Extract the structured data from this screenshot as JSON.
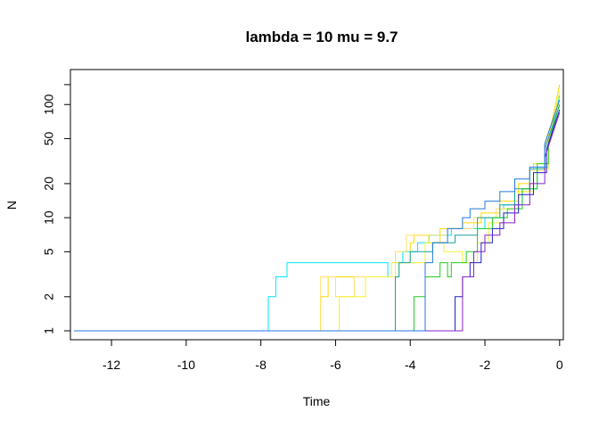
{
  "chart_data": {
    "type": "line",
    "title": "lambda = 10 mu = 9.7",
    "xlabel": "Time",
    "ylabel": "N",
    "xlim": [
      -13.1,
      0.1
    ],
    "ylim": [
      1,
      170
    ],
    "y_scale": "log",
    "x_ticks": [
      -12,
      -10,
      -8,
      -6,
      -4,
      -2,
      0
    ],
    "x_tick_labels": [
      "-12",
      "-10",
      "-8",
      "-6",
      "-4",
      "-2",
      "0"
    ],
    "y_ticks": [
      1,
      2,
      5,
      10,
      20,
      50,
      100
    ],
    "y_tick_labels": [
      "1",
      "2",
      "5",
      "10",
      "20",
      "50",
      "100"
    ],
    "grid": false,
    "series": [
      {
        "color": "#00e5ff",
        "values": [
          [
            -13.0,
            1
          ],
          [
            -7.8,
            1
          ],
          [
            -7.8,
            2
          ],
          [
            -7.6,
            2
          ],
          [
            -7.6,
            3
          ],
          [
            -7.3,
            3
          ],
          [
            -7.3,
            4
          ],
          [
            -4.6,
            4
          ],
          [
            -4.6,
            3
          ],
          [
            -4.4,
            3
          ],
          [
            -4.4,
            4
          ],
          [
            -4.2,
            4
          ],
          [
            -4.2,
            5
          ],
          [
            -3.8,
            5
          ],
          [
            -3.8,
            6
          ],
          [
            -3.5,
            6
          ],
          [
            -3.5,
            7
          ],
          [
            -2.9,
            7
          ],
          [
            -2.9,
            8
          ],
          [
            -2.0,
            8
          ],
          [
            -2.0,
            10
          ],
          [
            -1.5,
            10
          ],
          [
            -1.5,
            13
          ],
          [
            -1.0,
            13
          ],
          [
            -1.0,
            18
          ],
          [
            -0.6,
            18
          ],
          [
            -0.6,
            28
          ],
          [
            -0.3,
            28
          ],
          [
            -0.3,
            45
          ],
          [
            0,
            120
          ]
        ]
      },
      {
        "color": "#ffd700",
        "values": [
          [
            -13.0,
            1
          ],
          [
            -6.4,
            1
          ],
          [
            -6.4,
            2
          ],
          [
            -6.2,
            2
          ],
          [
            -6.2,
            3
          ],
          [
            -4.3,
            3
          ],
          [
            -4.3,
            4
          ],
          [
            -4.0,
            4
          ],
          [
            -4.0,
            6
          ],
          [
            -3.9,
            6
          ],
          [
            -3.9,
            7
          ],
          [
            -3.5,
            7
          ],
          [
            -3.5,
            6
          ],
          [
            -3.2,
            6
          ],
          [
            -3.2,
            8
          ],
          [
            -2.6,
            8
          ],
          [
            -2.6,
            9
          ],
          [
            -2.1,
            9
          ],
          [
            -2.1,
            11
          ],
          [
            -1.6,
            11
          ],
          [
            -1.6,
            14
          ],
          [
            -1.1,
            14
          ],
          [
            -1.1,
            20
          ],
          [
            -0.7,
            20
          ],
          [
            -0.7,
            30
          ],
          [
            -0.3,
            30
          ],
          [
            -0.3,
            50
          ],
          [
            0,
            150
          ]
        ]
      },
      {
        "color": "#ffe066",
        "values": [
          [
            -13.0,
            1
          ],
          [
            -6.4,
            1
          ],
          [
            -6.4,
            3
          ],
          [
            -6.0,
            3
          ],
          [
            -6.0,
            2
          ],
          [
            -5.5,
            2
          ],
          [
            -5.5,
            3
          ],
          [
            -4.4,
            3
          ],
          [
            -4.4,
            5
          ],
          [
            -4.1,
            5
          ],
          [
            -4.1,
            7
          ],
          [
            -3.0,
            7
          ],
          [
            -3.0,
            8
          ],
          [
            -2.3,
            8
          ],
          [
            -2.3,
            10
          ],
          [
            -1.7,
            10
          ],
          [
            -1.7,
            12
          ],
          [
            -1.2,
            12
          ],
          [
            -1.2,
            17
          ],
          [
            -0.8,
            17
          ],
          [
            -0.8,
            26
          ],
          [
            -0.4,
            26
          ],
          [
            -0.4,
            42
          ],
          [
            0,
            110
          ]
        ]
      },
      {
        "color": "#f2f230",
        "values": [
          [
            -13.0,
            1
          ],
          [
            -5.9,
            1
          ],
          [
            -5.9,
            2
          ],
          [
            -5.2,
            2
          ],
          [
            -5.2,
            3
          ],
          [
            -4.5,
            3
          ],
          [
            -4.5,
            4
          ],
          [
            -3.6,
            4
          ],
          [
            -3.6,
            6
          ],
          [
            -3.1,
            6
          ],
          [
            -3.1,
            5
          ],
          [
            -2.6,
            5
          ],
          [
            -2.6,
            4
          ],
          [
            -2.2,
            4
          ],
          [
            -2.2,
            6
          ],
          [
            -1.9,
            6
          ],
          [
            -1.9,
            9
          ],
          [
            -1.5,
            9
          ],
          [
            -1.5,
            12
          ],
          [
            -1.1,
            12
          ],
          [
            -1.1,
            17
          ],
          [
            -0.7,
            17
          ],
          [
            -0.7,
            27
          ],
          [
            -0.3,
            27
          ],
          [
            -0.3,
            45
          ],
          [
            0,
            130
          ]
        ]
      },
      {
        "color": "#1aa0a0",
        "values": [
          [
            -13.0,
            1
          ],
          [
            -4.4,
            1
          ],
          [
            -4.4,
            3
          ],
          [
            -4.3,
            3
          ],
          [
            -4.3,
            4
          ],
          [
            -4.0,
            4
          ],
          [
            -4.0,
            5
          ],
          [
            -3.4,
            5
          ],
          [
            -3.4,
            6
          ],
          [
            -2.8,
            6
          ],
          [
            -2.8,
            7
          ],
          [
            -2.2,
            7
          ],
          [
            -2.2,
            10
          ],
          [
            -1.6,
            10
          ],
          [
            -1.6,
            13
          ],
          [
            -1.2,
            13
          ],
          [
            -1.2,
            18
          ],
          [
            -0.8,
            18
          ],
          [
            -0.8,
            27
          ],
          [
            -0.4,
            27
          ],
          [
            -0.4,
            40
          ],
          [
            0,
            100
          ]
        ]
      },
      {
        "color": "#22cc22",
        "values": [
          [
            -13.0,
            1
          ],
          [
            -3.9,
            1
          ],
          [
            -3.9,
            2
          ],
          [
            -3.6,
            2
          ],
          [
            -3.6,
            3
          ],
          [
            -3.2,
            3
          ],
          [
            -3.2,
            4
          ],
          [
            -3.0,
            4
          ],
          [
            -3.0,
            3
          ],
          [
            -2.9,
            3
          ],
          [
            -2.9,
            4
          ],
          [
            -2.5,
            4
          ],
          [
            -2.5,
            5
          ],
          [
            -2.2,
            5
          ],
          [
            -2.2,
            8
          ],
          [
            -1.8,
            8
          ],
          [
            -1.8,
            10
          ],
          [
            -1.4,
            10
          ],
          [
            -1.4,
            12
          ],
          [
            -1.0,
            12
          ],
          [
            -1.0,
            18
          ],
          [
            -0.6,
            18
          ],
          [
            -0.6,
            30
          ],
          [
            -0.3,
            30
          ],
          [
            -0.3,
            45
          ],
          [
            0,
            100
          ]
        ]
      },
      {
        "color": "#2020cc",
        "values": [
          [
            -13.0,
            1
          ],
          [
            -2.8,
            1
          ],
          [
            -2.8,
            2
          ],
          [
            -2.6,
            2
          ],
          [
            -2.6,
            3
          ],
          [
            -2.4,
            3
          ],
          [
            -2.4,
            4
          ],
          [
            -2.1,
            4
          ],
          [
            -2.1,
            6
          ],
          [
            -1.8,
            6
          ],
          [
            -1.8,
            8
          ],
          [
            -1.5,
            8
          ],
          [
            -1.5,
            11
          ],
          [
            -1.1,
            11
          ],
          [
            -1.1,
            16
          ],
          [
            -0.7,
            16
          ],
          [
            -0.7,
            25
          ],
          [
            -0.35,
            25
          ],
          [
            -0.35,
            40
          ],
          [
            0,
            90
          ]
        ]
      },
      {
        "color": "#8822cc",
        "values": [
          [
            -13.0,
            1
          ],
          [
            -2.6,
            1
          ],
          [
            -2.6,
            3
          ],
          [
            -2.3,
            3
          ],
          [
            -2.3,
            5
          ],
          [
            -2.0,
            5
          ],
          [
            -2.0,
            7
          ],
          [
            -1.6,
            7
          ],
          [
            -1.6,
            9
          ],
          [
            -1.2,
            9
          ],
          [
            -1.2,
            13
          ],
          [
            -0.8,
            13
          ],
          [
            -0.8,
            20
          ],
          [
            -0.4,
            20
          ],
          [
            -0.4,
            34
          ],
          [
            0,
            85
          ]
        ]
      },
      {
        "color": "#2277dd",
        "values": [
          [
            -13.0,
            1
          ],
          [
            -3.6,
            1
          ],
          [
            -3.6,
            4
          ],
          [
            -3.4,
            4
          ],
          [
            -3.4,
            6
          ],
          [
            -3.0,
            6
          ],
          [
            -3.0,
            8
          ],
          [
            -2.6,
            8
          ],
          [
            -2.6,
            10
          ],
          [
            -2.4,
            10
          ],
          [
            -2.4,
            12
          ],
          [
            -2.0,
            12
          ],
          [
            -2.0,
            14
          ],
          [
            -1.6,
            14
          ],
          [
            -1.6,
            17
          ],
          [
            -1.2,
            17
          ],
          [
            -1.2,
            22
          ],
          [
            -0.8,
            22
          ],
          [
            -0.8,
            28
          ],
          [
            -0.4,
            28
          ],
          [
            -0.4,
            45
          ],
          [
            0,
            110
          ]
        ]
      }
    ]
  }
}
